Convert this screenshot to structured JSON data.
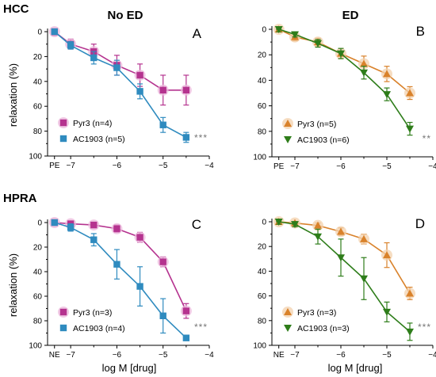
{
  "row_labels": [
    "HCC",
    "HPRA"
  ],
  "column_labels": [
    "No ED",
    "ED"
  ],
  "ylabel": "relaxation (%)",
  "xlabel": "log M [drug]",
  "colors": {
    "pyr3": "#b5338f",
    "pyr3_light": "#ecb8dc",
    "ac1903": "#2f8bbf",
    "ed_pyr3": "#d9822b",
    "ed_pyr3_light": "#f3d2ad",
    "ed_ac1903": "#2e7d1a"
  },
  "chart_data": [
    {
      "panel": "A",
      "type": "line",
      "ylim": [
        100,
        0
      ],
      "xlim": [
        -7.5,
        -4
      ],
      "x_ticks": [
        "PE",
        "-7",
        "-6",
        "-5",
        "-4"
      ],
      "y_ticks": [
        "0",
        "20",
        "40",
        "60",
        "80",
        "100"
      ],
      "significance": "***",
      "legend_position": "lower-left",
      "series": [
        {
          "name": "Pyr3 (n=4)",
          "marker": "square",
          "x": [
            "PE",
            -7,
            -6.5,
            -6,
            -5.5,
            -5,
            -4.5
          ],
          "values": [
            0,
            10,
            16,
            27,
            35,
            47,
            47
          ],
          "errors": [
            3,
            4,
            6,
            8,
            9,
            12,
            12
          ]
        },
        {
          "name": "AC1903 (n=5)",
          "marker": "square",
          "x": [
            "PE",
            -7,
            -6.5,
            -6,
            -5.5,
            -5,
            -4.5
          ],
          "values": [
            0,
            11,
            21,
            29,
            48,
            75,
            85
          ],
          "errors": [
            2,
            3,
            5,
            6,
            6,
            6,
            4
          ]
        }
      ]
    },
    {
      "panel": "B",
      "type": "line",
      "ylim": [
        100,
        0
      ],
      "xlim": [
        -7.5,
        -4
      ],
      "x_ticks": [
        "PE",
        "-7",
        "-6",
        "-5",
        "-4"
      ],
      "y_ticks": [
        "0",
        "20",
        "40",
        "60",
        "80",
        "100"
      ],
      "significance": "**",
      "legend_position": "lower-left",
      "series": [
        {
          "name": "Pyr3 (n=5)",
          "marker": "triangle-up",
          "x": [
            "PE",
            -7,
            -6.5,
            -6,
            -5.5,
            -5,
            -4.5
          ],
          "values": [
            0,
            6,
            10,
            19,
            27,
            35,
            50
          ],
          "errors": [
            2,
            3,
            3,
            4,
            6,
            6,
            5
          ]
        },
        {
          "name": "AC1903 (n=6)",
          "marker": "triangle-down",
          "x": [
            "PE",
            -7,
            -6.5,
            -6,
            -5.5,
            -5,
            -4.5
          ],
          "values": [
            0,
            4,
            11,
            19,
            34,
            51,
            78
          ],
          "errors": [
            2,
            2,
            3,
            4,
            5,
            5,
            5
          ]
        }
      ]
    },
    {
      "panel": "C",
      "type": "line",
      "ylim": [
        100,
        0
      ],
      "xlim": [
        -7.5,
        -4
      ],
      "x_ticks": [
        "NE",
        "-7",
        "-6",
        "-5",
        "-4"
      ],
      "y_ticks": [
        "0",
        "20",
        "40",
        "60",
        "80",
        "100"
      ],
      "significance": "***",
      "legend_position": "lower-left",
      "series": [
        {
          "name": "Pyr3 (n=3)",
          "marker": "square",
          "x": [
            "NE",
            -7,
            -6.5,
            -6,
            -5.5,
            -5,
            -4.5
          ],
          "values": [
            0,
            1,
            2,
            5,
            12,
            32,
            72
          ],
          "errors": [
            2,
            2,
            2,
            3,
            4,
            4,
            6
          ]
        },
        {
          "name": "AC1903 (n=4)",
          "marker": "square",
          "x": [
            "NE",
            -7,
            -6.5,
            -6,
            -5.5,
            -5,
            -4.5
          ],
          "values": [
            0,
            4,
            14,
            34,
            52,
            76,
            94
          ],
          "errors": [
            2,
            3,
            5,
            12,
            16,
            14,
            2
          ]
        }
      ]
    },
    {
      "panel": "D",
      "type": "line",
      "ylim": [
        100,
        0
      ],
      "xlim": [
        -7.5,
        -4
      ],
      "x_ticks": [
        "NE",
        "-7",
        "-6",
        "-5",
        "-4"
      ],
      "y_ticks": [
        "0",
        "20",
        "40",
        "60",
        "80",
        "100"
      ],
      "significance": "***",
      "legend_position": "lower-left",
      "series": [
        {
          "name": "Pyr3 (n=3)",
          "marker": "triangle-up",
          "x": [
            "NE",
            -7,
            -6.5,
            -6,
            -5.5,
            -5,
            -4.5
          ],
          "values": [
            0,
            1,
            3,
            8,
            14,
            27,
            58
          ],
          "errors": [
            2,
            2,
            2,
            3,
            4,
            10,
            5
          ]
        },
        {
          "name": "AC1903 (n=3)",
          "marker": "triangle-down",
          "x": [
            "NE",
            -7,
            -6.5,
            -6,
            -5.5,
            -5,
            -4.5
          ],
          "values": [
            0,
            2,
            12,
            29,
            46,
            73,
            89
          ],
          "errors": [
            2,
            2,
            6,
            15,
            17,
            8,
            7
          ]
        }
      ]
    }
  ]
}
